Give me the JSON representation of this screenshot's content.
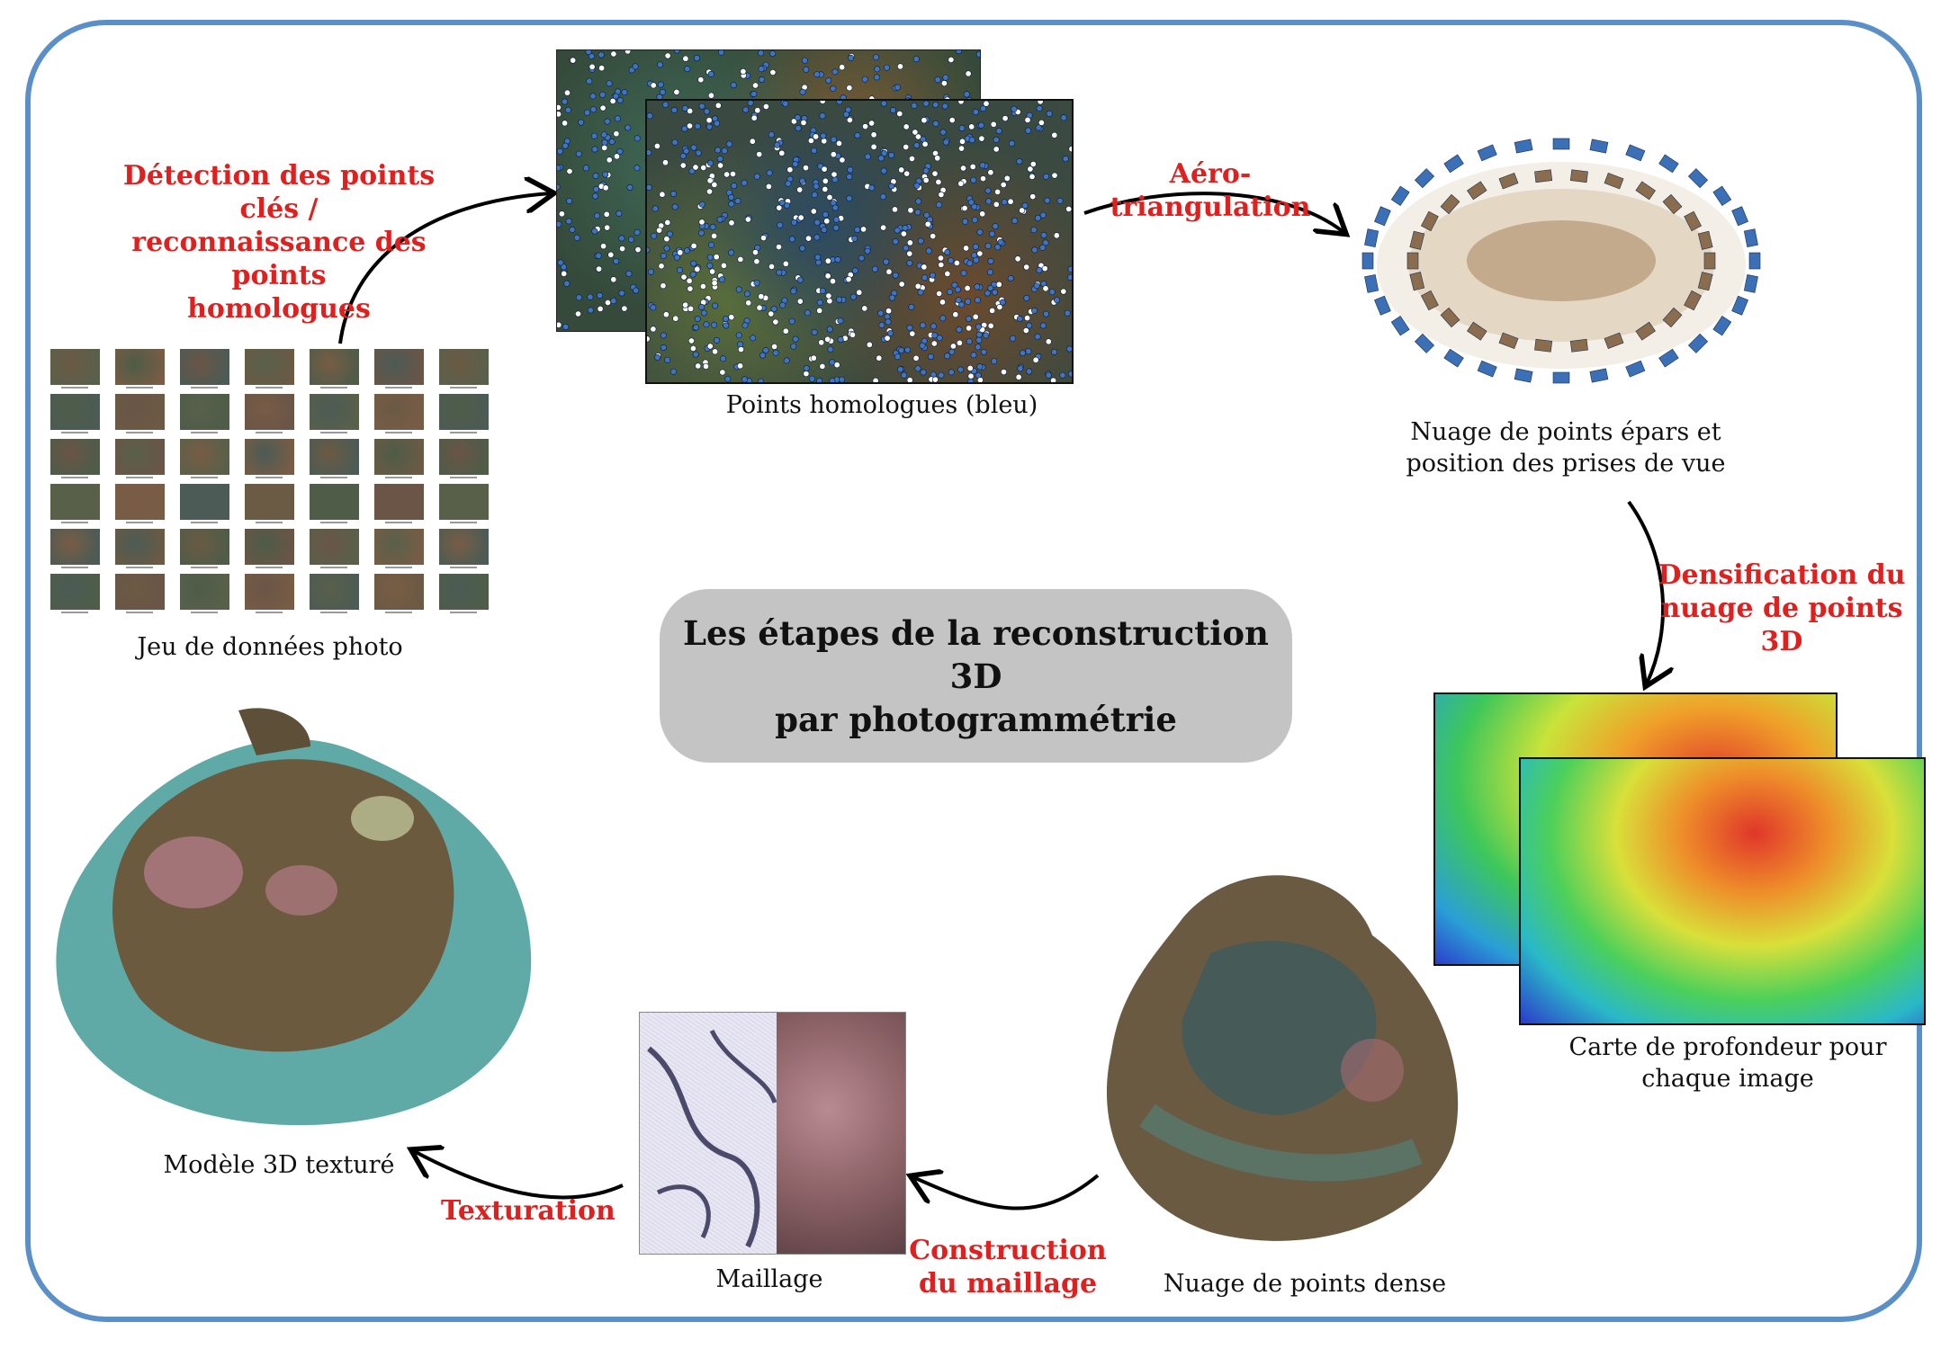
{
  "title": "Les étapes de la reconstruction 3D par photogrammétrie",
  "title_lines": [
    "Les étapes de la reconstruction 3D",
    "par photogrammétrie"
  ],
  "steps": {
    "detection": [
      "Détection des points clés /",
      "reconnaissance des points",
      "homologues"
    ],
    "aero": "Aéro-triangulation",
    "densification": [
      "Densification du",
      "nuage de points 3D"
    ],
    "maillage": [
      "Construction",
      "du maillage"
    ],
    "texturation": "Texturation"
  },
  "captions": {
    "photos": "Jeu de données photo",
    "homologues": "Points homologues (bleu)",
    "sparse": [
      "Nuage de points épars et",
      "position des prises de vue"
    ],
    "depth": [
      "Carte de profondeur pour",
      "chaque image"
    ],
    "dense": "Nuage de points dense",
    "mesh": "Maillage",
    "model": "Modèle 3D texturé"
  },
  "colors": {
    "frame": "#5b8fc7",
    "step_text": "#e0201f",
    "title_box": "#c4c4c4",
    "arrow": "#000000"
  },
  "icons": {
    "arrow": "curved-arrow-icon"
  }
}
